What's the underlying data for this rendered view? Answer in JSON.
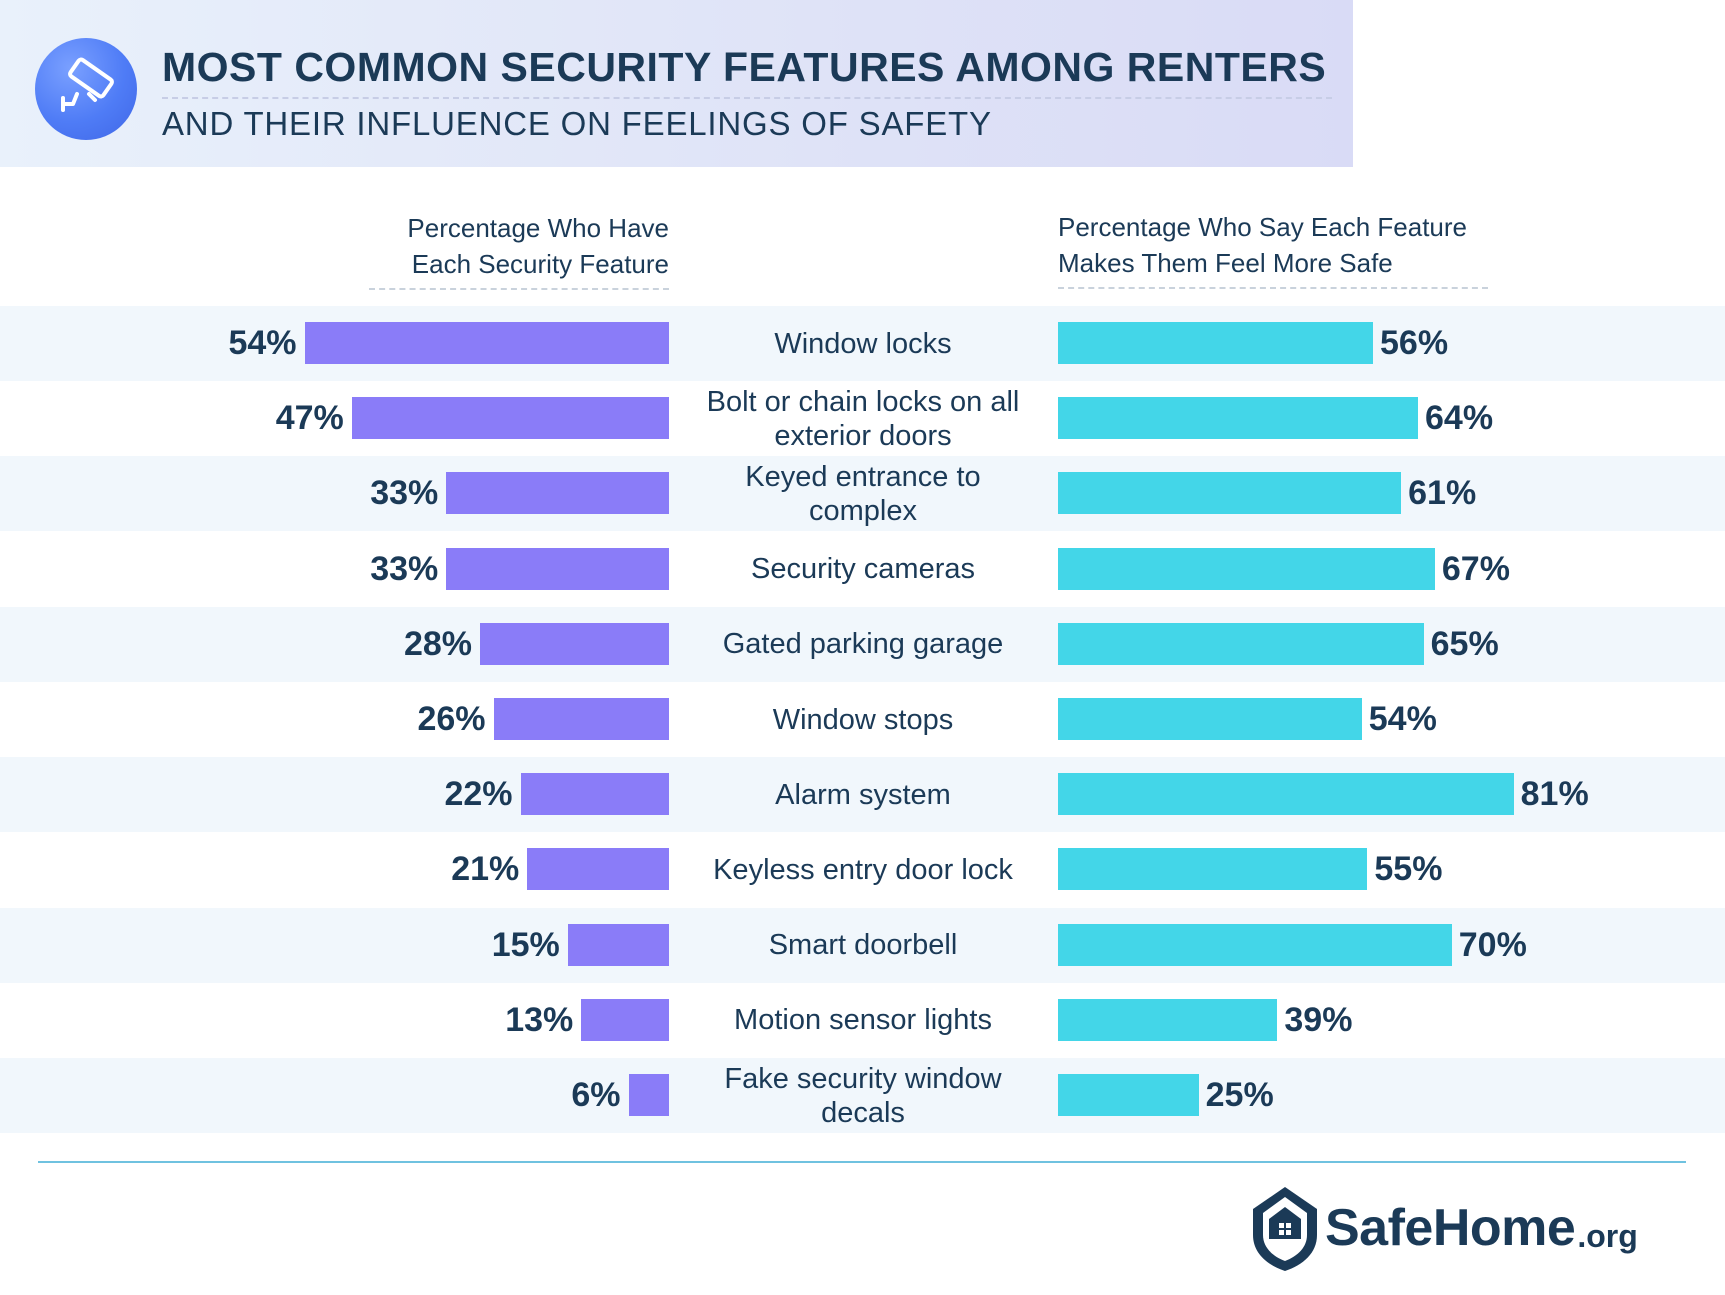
{
  "header": {
    "title": "MOST COMMON SECURITY FEATURES AMONG RENTERS",
    "subtitle": "AND THEIR INFLUENCE ON FEELINGS OF SAFETY",
    "icon": "security-camera-icon"
  },
  "columns": {
    "left_heading": "Percentage Who Have Each Security Feature",
    "right_heading": "Percentage Who Say Each Feature Makes Them Feel More Safe"
  },
  "chart_data": {
    "type": "bar",
    "categories": [
      "Window locks",
      "Bolt or chain locks on all exterior doors",
      "Keyed entrance to complex",
      "Security cameras",
      "Gated parking garage",
      "Window stops",
      "Alarm system",
      "Keyless entry door lock",
      "Smart doorbell",
      "Motion sensor lights",
      "Fake security window decals"
    ],
    "series": [
      {
        "name": "Percentage Who Have Each Security Feature",
        "values": [
          54,
          47,
          33,
          33,
          28,
          26,
          22,
          21,
          15,
          13,
          6
        ],
        "color": "#8a7cf8"
      },
      {
        "name": "Percentage Who Say Each Feature Makes Them Feel More Safe",
        "values": [
          56,
          64,
          61,
          67,
          65,
          54,
          81,
          55,
          70,
          39,
          25
        ],
        "color": "#43d6e8"
      }
    ],
    "value_suffix": "%",
    "layout": "mirrored-horizontal-bars"
  },
  "footer": {
    "logo_main": "SafeHome",
    "logo_suffix": ".org",
    "logo_icon": "shield-house-icon"
  }
}
